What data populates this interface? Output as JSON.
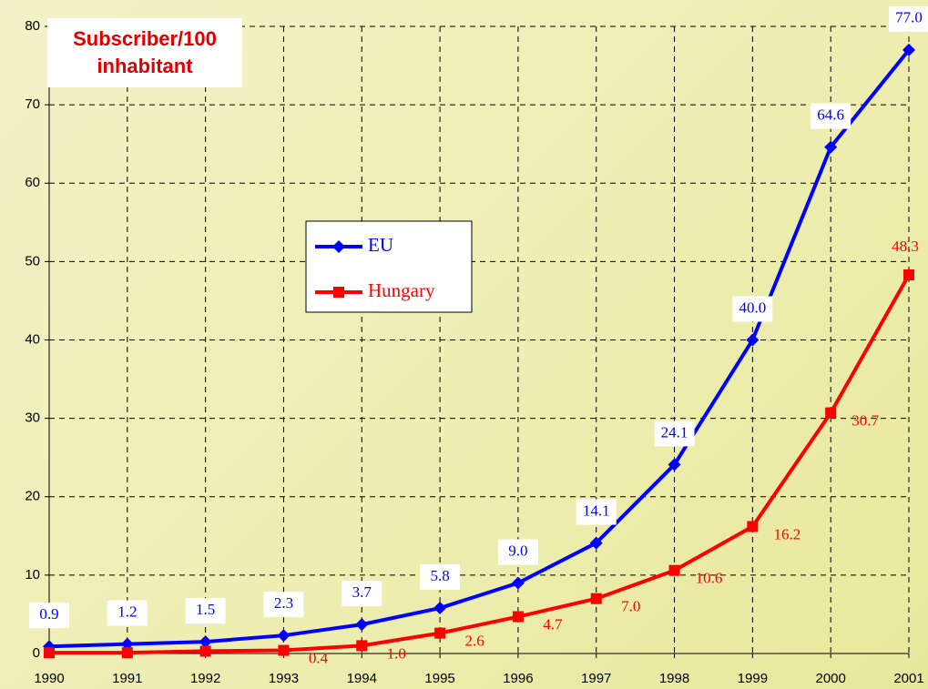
{
  "chart_data": {
    "type": "line",
    "title": "Subscriber/100 inhabitant",
    "x": [
      1990,
      1991,
      1992,
      1993,
      1994,
      1995,
      1996,
      1997,
      1998,
      1999,
      2000,
      2001
    ],
    "xlim": [
      1990,
      2001
    ],
    "xticks": [
      1990,
      1991,
      1992,
      1993,
      1994,
      1995,
      1996,
      1997,
      1998,
      1999,
      2000,
      2001
    ],
    "ylim": [
      0,
      80
    ],
    "yticks": [
      0,
      10,
      20,
      30,
      40,
      50,
      60,
      70,
      80
    ],
    "grid": true,
    "series": [
      {
        "name": "EU",
        "color": "#0000ff",
        "marker": "diamond",
        "values": [
          0.9,
          1.2,
          1.5,
          2.3,
          3.7,
          5.8,
          9.0,
          14.1,
          24.1,
          40.0,
          64.6,
          77.0
        ],
        "value_labels": [
          "0.9",
          "1.2",
          "1.5",
          "2.3",
          "3.7",
          "5.8",
          "9.0",
          "14.1",
          "24.1",
          "40.0",
          "64.6",
          "77.0"
        ]
      },
      {
        "name": "Hungary",
        "color": "#ff0000",
        "marker": "square",
        "values": [
          0.1,
          0.1,
          0.3,
          0.4,
          1.0,
          2.6,
          4.7,
          7.0,
          10.6,
          16.2,
          30.7,
          48.3
        ],
        "value_labels": [
          null,
          null,
          null,
          "0.4",
          "1.0",
          "2.6",
          "4.7",
          "7.0",
          "10.6",
          "16.2",
          "30.7",
          "48.3"
        ]
      }
    ]
  }
}
